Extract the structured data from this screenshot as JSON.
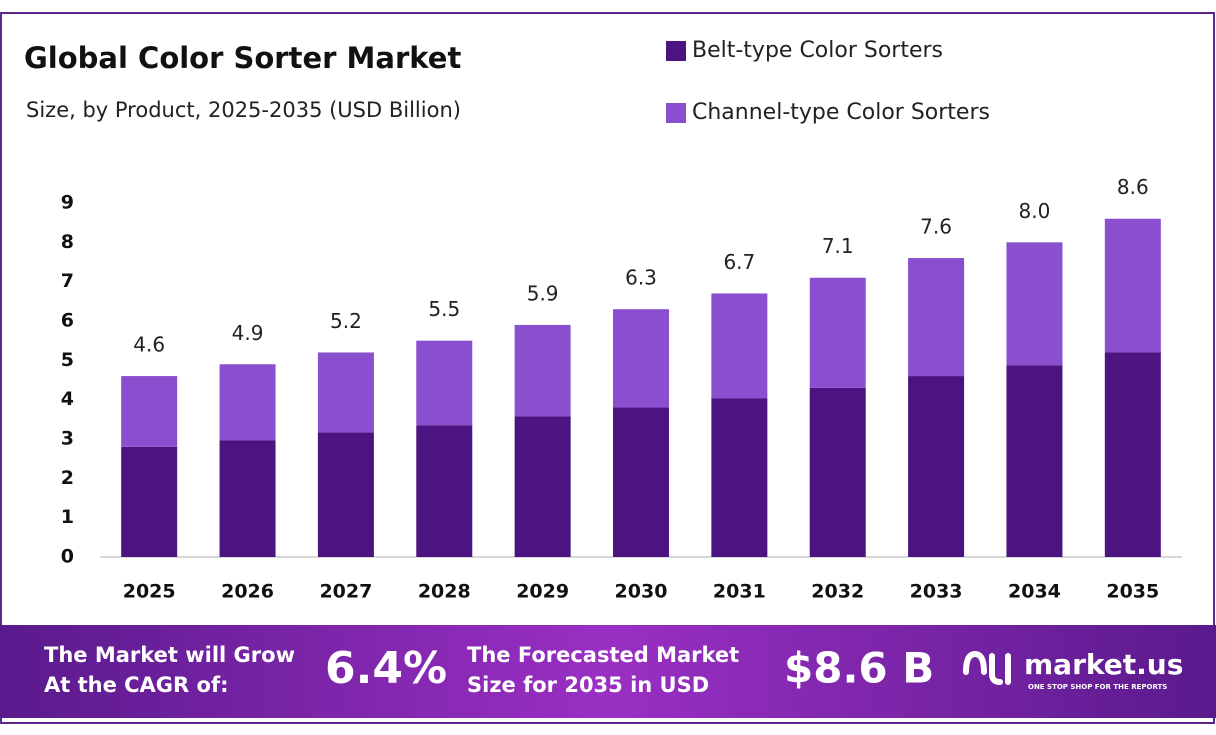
{
  "chart_data": {
    "type": "stacked_bar",
    "title": "Global Color Sorter Market",
    "subtitle": "Size, by Product, 2025-2035 (USD Billion)",
    "categories": [
      "2025",
      "2026",
      "2027",
      "2028",
      "2029",
      "2030",
      "2031",
      "2032",
      "2033",
      "2034",
      "2035"
    ],
    "series": [
      {
        "name": "Belt-type Color Sorters",
        "color": "#4b1480",
        "values": [
          2.8,
          2.97,
          3.17,
          3.35,
          3.58,
          3.8,
          4.03,
          4.3,
          4.6,
          4.87,
          5.2
        ]
      },
      {
        "name": "Channel-type Color Sorters",
        "color": "#8a4fcf",
        "values": [
          1.8,
          1.93,
          2.03,
          2.15,
          2.32,
          2.5,
          2.67,
          2.8,
          3.0,
          3.13,
          3.4
        ]
      }
    ],
    "totals": [
      4.6,
      4.9,
      5.2,
      5.5,
      5.9,
      6.3,
      6.7,
      7.1,
      7.6,
      8.0,
      8.6
    ],
    "total_labels": [
      "4.6",
      "4.9",
      "5.2",
      "5.5",
      "5.9",
      "6.3",
      "6.7",
      "7.1",
      "7.6",
      "8.0",
      "8.6"
    ],
    "ylim": [
      0,
      9
    ],
    "yticks": [
      0,
      1,
      2,
      3,
      4,
      5,
      6,
      7,
      8,
      9
    ],
    "grid": false
  },
  "footer": {
    "cagr_label": [
      "The Market will Grow",
      "At the CAGR of:"
    ],
    "cagr": "6.4%",
    "forecast_label": [
      "The Forecasted Market",
      "Size for 2035 in USD"
    ],
    "forecast": "$8.6 B",
    "brand": "market.us",
    "tagline": "ONE STOP SHOP FOR THE REPORTS"
  }
}
